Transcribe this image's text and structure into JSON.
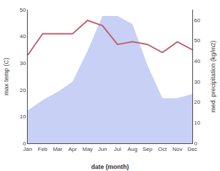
{
  "chart_data": {
    "type": "line",
    "xlabel": "date (month)",
    "ylabel": "max temp (C)",
    "y2label": "med. precipitation (kg/m2)",
    "categories": [
      "Jan",
      "Feb",
      "Mar",
      "Apr",
      "May",
      "Jun",
      "Jul",
      "Aug",
      "Sep",
      "Oct",
      "Nov",
      "Dec"
    ],
    "series": [
      {
        "type": "line",
        "color": "#c0616a",
        "values": [
          33,
          41,
          41,
          41,
          46,
          44,
          37,
          38,
          37,
          34,
          38,
          35
        ]
      },
      {
        "type": "area",
        "axis": "y2",
        "color": "#c8d0f5",
        "values": [
          16,
          21,
          25,
          30,
          45,
          62,
          62,
          58,
          38,
          22,
          22,
          24
        ]
      }
    ],
    "ylim": [
      0,
      50
    ],
    "yticks": [
      0,
      10,
      20,
      30,
      40,
      50
    ],
    "y2lim": [
      0,
      65
    ],
    "y2ticks": [
      0,
      10,
      20,
      30,
      40,
      50,
      60
    ],
    "grid": false
  }
}
